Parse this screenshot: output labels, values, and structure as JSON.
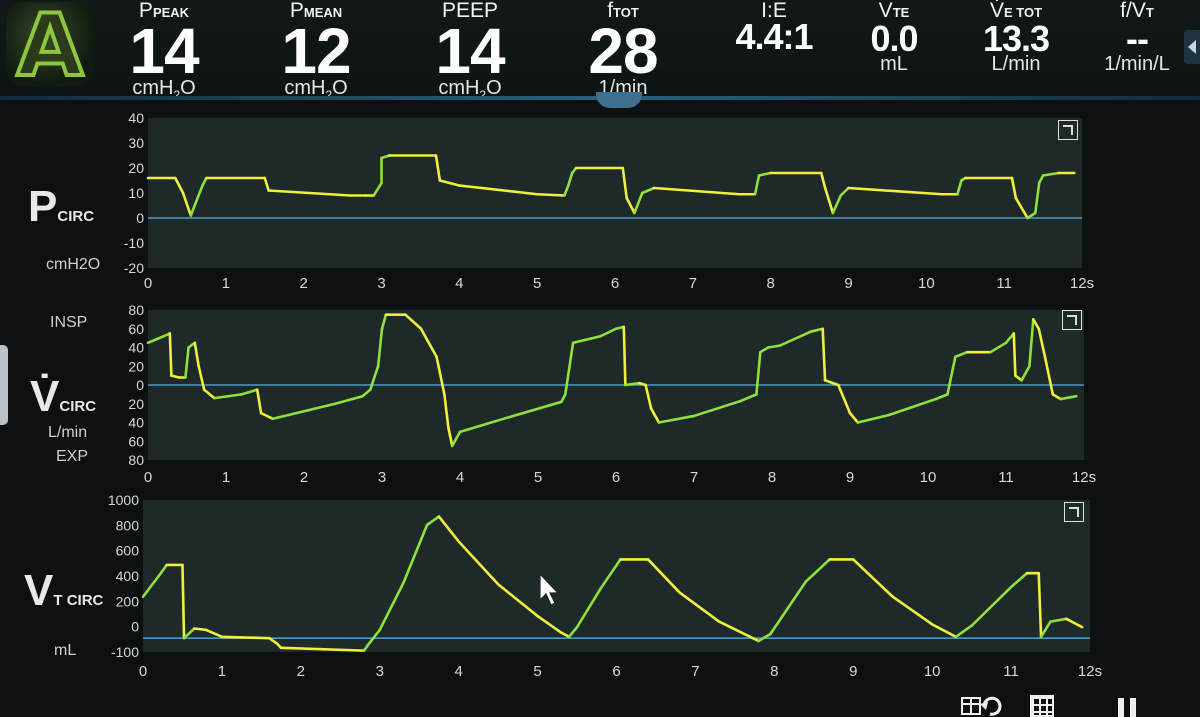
{
  "mode_badge": {
    "letter": "A"
  },
  "params": [
    {
      "id": "ppeak",
      "label": "P",
      "sub": "PEAK",
      "value": "14",
      "unit": "cmH",
      "unit_sub": "2",
      "unit_tail": "O"
    },
    {
      "id": "pmean",
      "label": "P",
      "sub": "MEAN",
      "value": "12",
      "unit": "cmH",
      "unit_sub": "2",
      "unit_tail": "O"
    },
    {
      "id": "peep",
      "label": "PEEP",
      "sub": "",
      "value": "14",
      "unit": "cmH",
      "unit_sub": "2",
      "unit_tail": "O"
    },
    {
      "id": "ftot",
      "label": "f",
      "sub": "TOT",
      "value": "28",
      "unit": "1/min",
      "unit_sub": "",
      "unit_tail": ""
    },
    {
      "id": "ie",
      "label": "I:E",
      "sub": "",
      "value": "4.4:1",
      "unit": "",
      "unit_sub": "",
      "unit_tail": ""
    },
    {
      "id": "vte",
      "label": "V",
      "sub": "TE",
      "value": "0.0",
      "unit": "mL",
      "unit_sub": "",
      "unit_tail": ""
    },
    {
      "id": "vetot",
      "label": "V̇",
      "sub": "E TOT",
      "value": "13.3",
      "unit": "L/min",
      "unit_sub": "",
      "unit_tail": ""
    },
    {
      "id": "fvt",
      "label": "f/V",
      "sub": "T",
      "value": "--",
      "unit": "1/min/L",
      "unit_sub": "",
      "unit_tail": ""
    }
  ],
  "x_ticks": [
    "0",
    "1",
    "2",
    "3",
    "4",
    "5",
    "6",
    "7",
    "8",
    "9",
    "10",
    "11",
    "12s"
  ],
  "colors": {
    "trace_green": "#8fe23a",
    "trace_yellow": "#f2ee3c",
    "baseline": "#4a98c8",
    "panel": "#1e2a2a"
  },
  "panels": {
    "pressure": {
      "label_main": "P",
      "label_sub": "CIRC",
      "unit_label": "cmH2O",
      "y_ticks": [
        "40",
        "30",
        "20",
        "10",
        "0",
        "-10",
        "-20"
      ],
      "ylim": [
        -20,
        40
      ]
    },
    "flow": {
      "label_main": "V̇",
      "label_sub": "CIRC",
      "unit_label": "L/min",
      "insp_label": "INSP",
      "exp_label": "EXP",
      "y_ticks": [
        "80",
        "60",
        "40",
        "20",
        "0",
        "20",
        "40",
        "60",
        "80"
      ],
      "ylim": [
        -80,
        80
      ]
    },
    "volume": {
      "label_main": "V",
      "label_sub": "T CIRC",
      "unit_label": "mL",
      "y_ticks": [
        "1000",
        "800",
        "600",
        "400",
        "200",
        "0",
        "-100"
      ],
      "ylim": [
        -100,
        1000
      ]
    }
  },
  "chart_data": [
    {
      "type": "line",
      "xlabel": "",
      "ylabel": "cmH2O",
      "ylim": [
        -20,
        40
      ],
      "xlim": [
        0,
        12
      ],
      "series": [
        {
          "values": [
            [
              0,
              16
            ],
            [
              0.35,
              16
            ],
            [
              0.45,
              10
            ],
            [
              0.55,
              1
            ],
            [
              0.7,
              13
            ],
            [
              0.75,
              16
            ],
            [
              1.5,
              16
            ],
            [
              1.55,
              11
            ],
            [
              2.6,
              9
            ],
            [
              2.8,
              9
            ],
            [
              2.9,
              9
            ],
            [
              3.0,
              14
            ],
            [
              3.0,
              24
            ],
            [
              3.1,
              25
            ],
            [
              3.7,
              25
            ],
            [
              3.75,
              15
            ],
            [
              4.0,
              13
            ],
            [
              5.0,
              9.5
            ],
            [
              5.35,
              9
            ],
            [
              5.4,
              13
            ],
            [
              5.45,
              18
            ],
            [
              5.5,
              20
            ],
            [
              6.1,
              20
            ],
            [
              6.15,
              8
            ],
            [
              6.25,
              2
            ],
            [
              6.35,
              10
            ],
            [
              6.5,
              12
            ],
            [
              7.6,
              9.5
            ],
            [
              7.8,
              9.5
            ],
            [
              7.85,
              17
            ],
            [
              8.0,
              18
            ],
            [
              8.65,
              18
            ],
            [
              8.7,
              12
            ],
            [
              8.8,
              2
            ],
            [
              8.9,
              9
            ],
            [
              9.0,
              12
            ],
            [
              10.2,
              9.5
            ],
            [
              10.4,
              9.5
            ],
            [
              10.45,
              15
            ],
            [
              10.5,
              16
            ],
            [
              11.1,
              16
            ],
            [
              11.15,
              8
            ],
            [
              11.3,
              0
            ],
            [
              11.4,
              2
            ],
            [
              11.45,
              14
            ],
            [
              11.5,
              17
            ],
            [
              11.7,
              18
            ],
            [
              11.9,
              18
            ]
          ]
        }
      ]
    },
    {
      "type": "line",
      "xlabel": "",
      "ylabel": "L/min",
      "ylim": [
        -80,
        80
      ],
      "xlim": [
        0,
        12
      ],
      "series": [
        {
          "values": [
            [
              0,
              45
            ],
            [
              0.2,
              52
            ],
            [
              0.28,
              55
            ],
            [
              0.3,
              10
            ],
            [
              0.4,
              8
            ],
            [
              0.48,
              8
            ],
            [
              0.52,
              40
            ],
            [
              0.6,
              45
            ],
            [
              0.65,
              20
            ],
            [
              0.72,
              -5
            ],
            [
              0.85,
              -14
            ],
            [
              1.2,
              -10
            ],
            [
              1.4,
              -5
            ],
            [
              1.45,
              -30
            ],
            [
              1.6,
              -36
            ],
            [
              2.4,
              -20
            ],
            [
              2.75,
              -12
            ],
            [
              2.85,
              -5
            ],
            [
              2.95,
              20
            ],
            [
              3.0,
              60
            ],
            [
              3.05,
              75
            ],
            [
              3.3,
              75
            ],
            [
              3.5,
              60
            ],
            [
              3.7,
              30
            ],
            [
              3.8,
              -10
            ],
            [
              3.85,
              -45
            ],
            [
              3.9,
              -65
            ],
            [
              4.0,
              -50
            ],
            [
              4.6,
              -35
            ],
            [
              5.3,
              -18
            ],
            [
              5.35,
              -10
            ],
            [
              5.45,
              45
            ],
            [
              5.6,
              48
            ],
            [
              5.8,
              52
            ],
            [
              6.0,
              60
            ],
            [
              6.1,
              62
            ],
            [
              6.12,
              0
            ],
            [
              6.3,
              2
            ],
            [
              6.38,
              0
            ],
            [
              6.45,
              -25
            ],
            [
              6.55,
              -40
            ],
            [
              7.0,
              -33
            ],
            [
              7.6,
              -17
            ],
            [
              7.8,
              -10
            ],
            [
              7.85,
              35
            ],
            [
              7.95,
              40
            ],
            [
              8.1,
              42
            ],
            [
              8.5,
              57
            ],
            [
              8.65,
              60
            ],
            [
              8.68,
              5
            ],
            [
              8.85,
              0
            ],
            [
              9.0,
              -30
            ],
            [
              9.1,
              -40
            ],
            [
              9.5,
              -32
            ],
            [
              10.1,
              -15
            ],
            [
              10.25,
              -10
            ],
            [
              10.35,
              30
            ],
            [
              10.5,
              35
            ],
            [
              10.8,
              35
            ],
            [
              11.0,
              45
            ],
            [
              11.1,
              55
            ],
            [
              11.12,
              10
            ],
            [
              11.2,
              5
            ],
            [
              11.3,
              20
            ],
            [
              11.35,
              70
            ],
            [
              11.42,
              60
            ],
            [
              11.5,
              30
            ],
            [
              11.6,
              -10
            ],
            [
              11.7,
              -15
            ],
            [
              11.9,
              -12
            ]
          ]
        }
      ]
    },
    {
      "type": "line",
      "xlabel": "",
      "ylabel": "mL",
      "ylim": [
        -100,
        1000
      ],
      "xlim": [
        0,
        12
      ],
      "series": [
        {
          "values": [
            [
              0,
              300
            ],
            [
              0.2,
              450
            ],
            [
              0.3,
              530
            ],
            [
              0.5,
              530
            ],
            [
              0.52,
              0
            ],
            [
              0.65,
              70
            ],
            [
              0.8,
              60
            ],
            [
              1.0,
              10
            ],
            [
              1.6,
              0
            ],
            [
              1.7,
              -40
            ],
            [
              1.75,
              -70
            ],
            [
              2.8,
              -90
            ],
            [
              2.85,
              -50
            ],
            [
              3.0,
              60
            ],
            [
              3.3,
              400
            ],
            [
              3.6,
              820
            ],
            [
              3.75,
              880
            ],
            [
              4.0,
              700
            ],
            [
              4.5,
              390
            ],
            [
              5.0,
              160
            ],
            [
              5.3,
              40
            ],
            [
              5.4,
              10
            ],
            [
              5.5,
              80
            ],
            [
              5.8,
              360
            ],
            [
              6.05,
              570
            ],
            [
              6.4,
              570
            ],
            [
              6.8,
              330
            ],
            [
              7.3,
              120
            ],
            [
              7.8,
              -20
            ],
            [
              7.95,
              30
            ],
            [
              8.4,
              410
            ],
            [
              8.7,
              570
            ],
            [
              9.0,
              570
            ],
            [
              9.5,
              300
            ],
            [
              10.0,
              100
            ],
            [
              10.3,
              10
            ],
            [
              10.5,
              90
            ],
            [
              11.0,
              370
            ],
            [
              11.2,
              470
            ],
            [
              11.35,
              470
            ],
            [
              11.38,
              10
            ],
            [
              11.5,
              120
            ],
            [
              11.7,
              140
            ],
            [
              11.9,
              80
            ]
          ]
        }
      ]
    }
  ]
}
